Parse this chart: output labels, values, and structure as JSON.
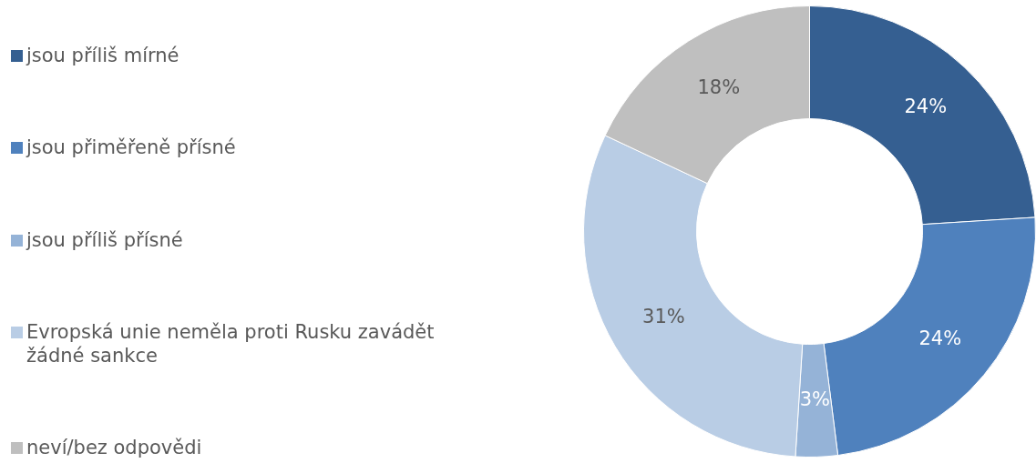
{
  "chart_data": {
    "type": "donut",
    "categories": [
      "jsou příliš mírné",
      "jsou přiměřeně přísné",
      "jsou příliš přísné",
      "Evropská unie neměla proti Rusku zavádět žádné sankce",
      "neví/bez odpovědi"
    ],
    "values": [
      24,
      24,
      3,
      31,
      18
    ],
    "colors": [
      "#355f91",
      "#4f81bd",
      "#95b3d7",
      "#b9cde5",
      "#bfbfbf"
    ],
    "value_labels": [
      "24%",
      "24%",
      "3%",
      "31%",
      "18%"
    ],
    "legend": "left"
  }
}
